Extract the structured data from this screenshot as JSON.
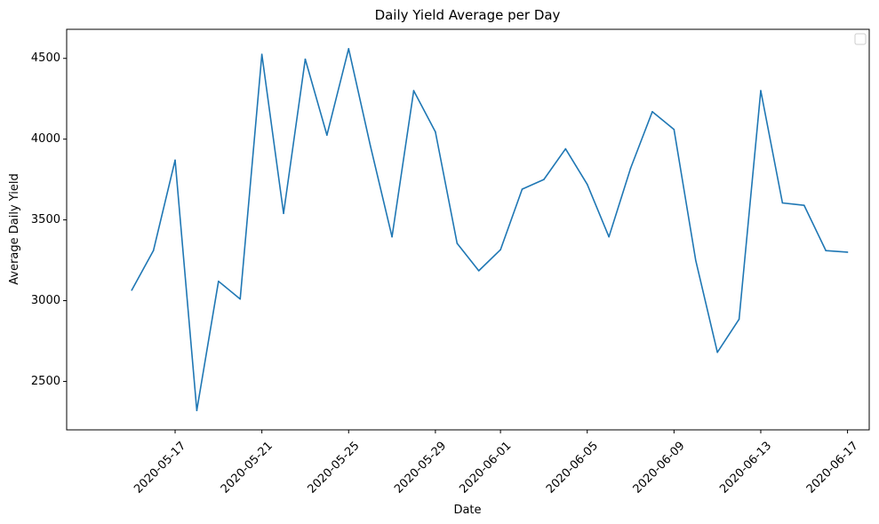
{
  "chart_data": {
    "type": "line",
    "title": "Daily Yield Average per Day",
    "xlabel": "Date",
    "ylabel": "Average Daily Yield",
    "x_ticks": [
      "2020-05-17",
      "2020-05-21",
      "2020-05-25",
      "2020-05-29",
      "2020-06-01",
      "2020-06-05",
      "2020-06-09",
      "2020-06-13",
      "2020-06-17"
    ],
    "y_ticks": [
      2500,
      3000,
      3500,
      4000,
      4500
    ],
    "x_range": [
      "2020-05-12",
      "2020-06-18"
    ],
    "ylim": [
      2200,
      4680
    ],
    "grid": false,
    "legend_position": "top-right",
    "series": [
      {
        "color": "#1f77b4",
        "x": [
          "2020-05-15",
          "2020-05-16",
          "2020-05-17",
          "2020-05-18",
          "2020-05-19",
          "2020-05-20",
          "2020-05-21",
          "2020-05-22",
          "2020-05-23",
          "2020-05-24",
          "2020-05-25",
          "2020-05-26",
          "2020-05-27",
          "2020-05-28",
          "2020-05-29",
          "2020-05-30",
          "2020-05-31",
          "2020-06-01",
          "2020-06-02",
          "2020-06-03",
          "2020-06-04",
          "2020-06-05",
          "2020-06-06",
          "2020-06-07",
          "2020-06-08",
          "2020-06-09",
          "2020-06-10",
          "2020-06-11",
          "2020-06-12",
          "2020-06-13",
          "2020-06-14",
          "2020-06-15",
          "2020-06-16",
          "2020-06-17"
        ],
        "values": [
          3065,
          3310,
          3870,
          2320,
          3120,
          3010,
          4525,
          3540,
          4495,
          4025,
          4560,
          3960,
          3395,
          4300,
          4045,
          3355,
          3185,
          3315,
          3690,
          3750,
          3940,
          3720,
          3395,
          3820,
          4170,
          4060,
          3250,
          2680,
          2885,
          4300,
          3605,
          3590,
          3310,
          3300
        ]
      }
    ]
  }
}
